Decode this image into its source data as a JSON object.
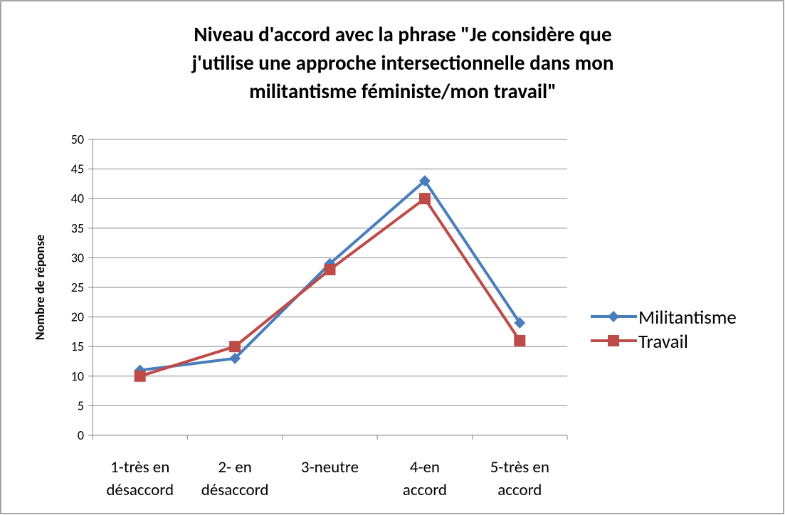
{
  "chart_data": {
    "type": "line",
    "title": [
      "Niveau d'accord avec la phrase \"Je considère que",
      "j'utilise une approche intersectionnelle dans mon",
      "militantisme féministe/mon travail\""
    ],
    "y_label": "Nombre de réponse",
    "categories": [
      [
        "1-très en",
        "désaccord"
      ],
      [
        "2- en",
        "désaccord"
      ],
      [
        "3-neutre"
      ],
      [
        "4-en",
        "accord"
      ],
      [
        "5-très en",
        "accord"
      ]
    ],
    "series": [
      {
        "name": "Militantisme",
        "color": "#4a7ebb",
        "marker": "diamond",
        "values": [
          11,
          13,
          29,
          43,
          19
        ]
      },
      {
        "name": "Travail",
        "color": "#be4b48",
        "marker": "square",
        "values": [
          10,
          15,
          28,
          40,
          16
        ]
      }
    ],
    "ylim": [
      0,
      50
    ],
    "yticks": [
      0,
      5,
      10,
      15,
      20,
      25,
      30,
      35,
      40,
      45,
      50
    ],
    "grid": true,
    "legend": "right"
  }
}
